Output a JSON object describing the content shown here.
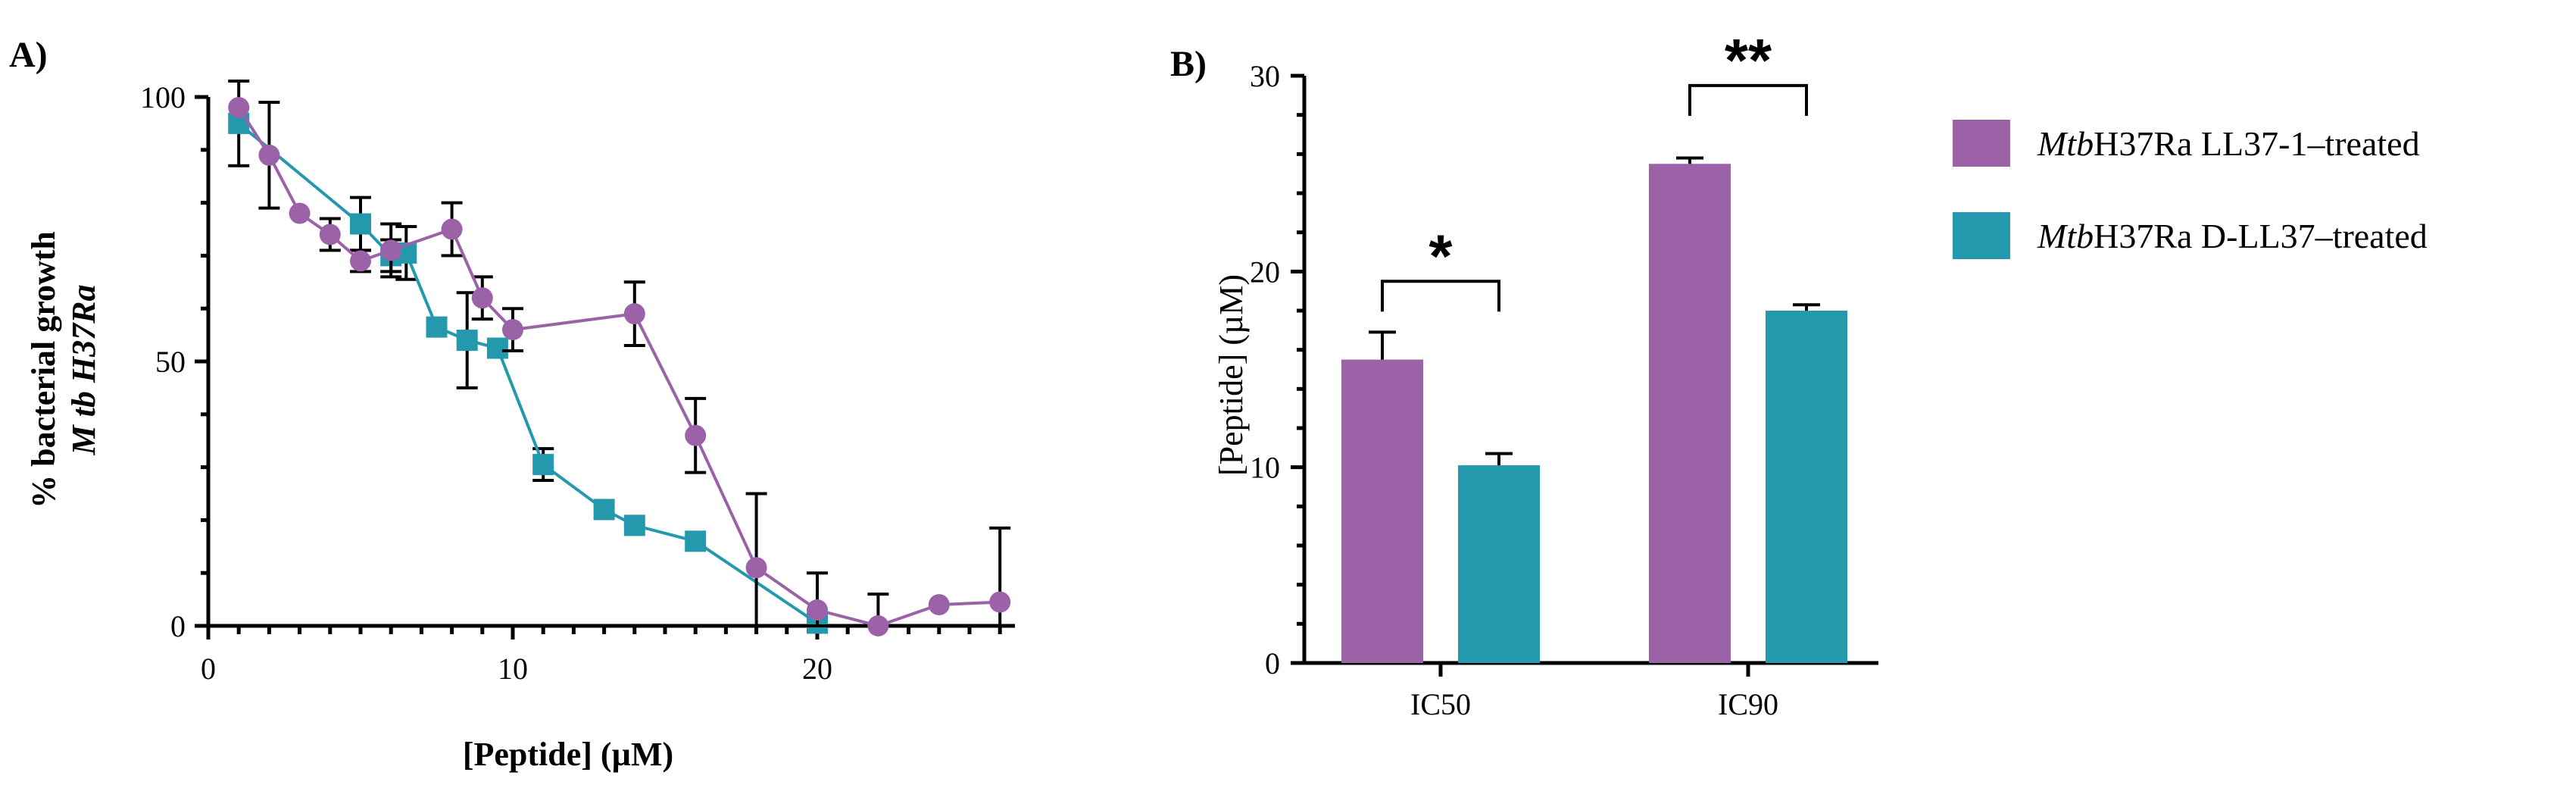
{
  "colors": {
    "purple": "#9c62a8",
    "teal": "#2499ae"
  },
  "panel_a": {
    "label": "A)"
  },
  "panel_b": {
    "label": "B)"
  },
  "chart_data": [
    {
      "type": "line",
      "panel": "A)",
      "xlabel": "[Peptide] (µM)",
      "ylabel_line1": "% bacterial growth",
      "ylabel_line2": "M tb H37Ra",
      "xlim": [
        0,
        27
      ],
      "ylim": [
        0,
        100
      ],
      "xticks": [
        "0",
        "10",
        "20"
      ],
      "yticks": [
        "0",
        "50",
        "100"
      ],
      "series": [
        {
          "color": "#9c62a8",
          "marker": "circle",
          "x": [
            1,
            2,
            3,
            4,
            5,
            6,
            8,
            9,
            10,
            14,
            16,
            18,
            20,
            22,
            24,
            26
          ],
          "y": [
            98,
            89,
            78,
            74,
            69,
            71,
            75,
            62,
            56,
            59,
            36,
            11,
            3,
            0,
            4,
            4.5
          ],
          "err": [
            0,
            10,
            0,
            3,
            2,
            5,
            5,
            4,
            4,
            6,
            7,
            14,
            7,
            6,
            0,
            14
          ]
        },
        {
          "color": "#2499ae",
          "marker": "square",
          "x": [
            1,
            5,
            6,
            6.5,
            7.5,
            8.5,
            9.5,
            11,
            13,
            14,
            16,
            20
          ],
          "y": [
            95,
            76,
            70,
            70.5,
            56.5,
            54,
            52.5,
            30.5,
            22,
            19,
            16,
            0.5
          ],
          "err": [
            8,
            5,
            3,
            5,
            0,
            9,
            0,
            3,
            0,
            0,
            0,
            0
          ]
        }
      ]
    },
    {
      "type": "bar",
      "panel": "B)",
      "ylabel": "[Peptide] (µM)",
      "ylim": [
        0,
        30
      ],
      "yticks": [
        "0",
        "10",
        "20",
        "30"
      ],
      "categories": [
        "IC50",
        "IC90"
      ],
      "series": [
        {
          "name_italic": "Mtb",
          "name_rest": "H37Ra LL37-1–treated",
          "color": "#9c62a8",
          "values": [
            15.5,
            25.5
          ],
          "err": [
            1.4,
            0.3
          ]
        },
        {
          "name_italic": "Mtb",
          "name_rest": "H37Ra D-LL37–treated",
          "color": "#2499ae",
          "values": [
            10.1,
            18.0
          ],
          "err": [
            0.6,
            0.3
          ]
        }
      ],
      "significance": [
        "*",
        "**"
      ]
    }
  ]
}
